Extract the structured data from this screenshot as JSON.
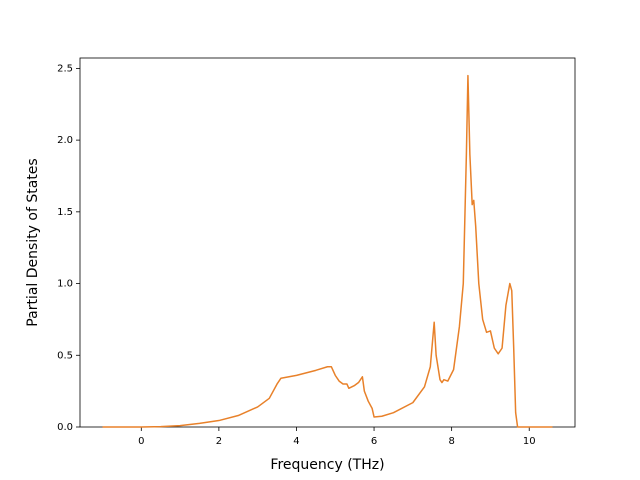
{
  "chart_data": {
    "type": "line",
    "xlabel": "Frequency (THz)",
    "ylabel": "Partial Density of States",
    "x": [
      -1,
      0,
      0.5,
      1,
      1.5,
      2,
      2.5,
      3,
      3.3,
      3.5,
      3.6,
      4,
      4.5,
      4.8,
      4.9,
      5.0,
      5.1,
      5.2,
      5.3,
      5.35,
      5.5,
      5.6,
      5.7,
      5.75,
      5.85,
      5.95,
      6.0,
      6.2,
      6.5,
      7,
      7.3,
      7.45,
      7.55,
      7.6,
      7.7,
      7.75,
      7.8,
      7.9,
      8.05,
      8.2,
      8.3,
      8.38,
      8.42,
      8.47,
      8.53,
      8.57,
      8.62,
      8.7,
      8.8,
      8.9,
      9.0,
      9.1,
      9.2,
      9.3,
      9.4,
      9.5,
      9.55,
      9.6,
      9.65,
      9.7,
      10.6
    ],
    "values": [
      0,
      0,
      0.003,
      0.01,
      0.025,
      0.045,
      0.08,
      0.14,
      0.2,
      0.3,
      0.34,
      0.36,
      0.395,
      0.42,
      0.42,
      0.36,
      0.32,
      0.3,
      0.3,
      0.27,
      0.29,
      0.31,
      0.35,
      0.25,
      0.18,
      0.13,
      0.07,
      0.075,
      0.1,
      0.17,
      0.28,
      0.42,
      0.73,
      0.5,
      0.33,
      0.31,
      0.33,
      0.32,
      0.4,
      0.7,
      1.0,
      1.9,
      2.45,
      1.9,
      1.55,
      1.58,
      1.4,
      1.0,
      0.75,
      0.66,
      0.67,
      0.55,
      0.51,
      0.55,
      0.85,
      1.0,
      0.95,
      0.55,
      0.1,
      0,
      0
    ],
    "color": "#e8812a",
    "xlim": [
      -1.58,
      11.18
    ],
    "ylim": [
      0,
      2.5725
    ],
    "xticks": [
      0,
      2,
      4,
      6,
      8,
      10
    ],
    "yticks": [
      {
        "value": 0,
        "label": "0.0"
      },
      0.5,
      {
        "value": 1,
        "label": "1.0"
      },
      1.5,
      {
        "value": 2,
        "label": "2.0"
      },
      2.5
    ]
  }
}
